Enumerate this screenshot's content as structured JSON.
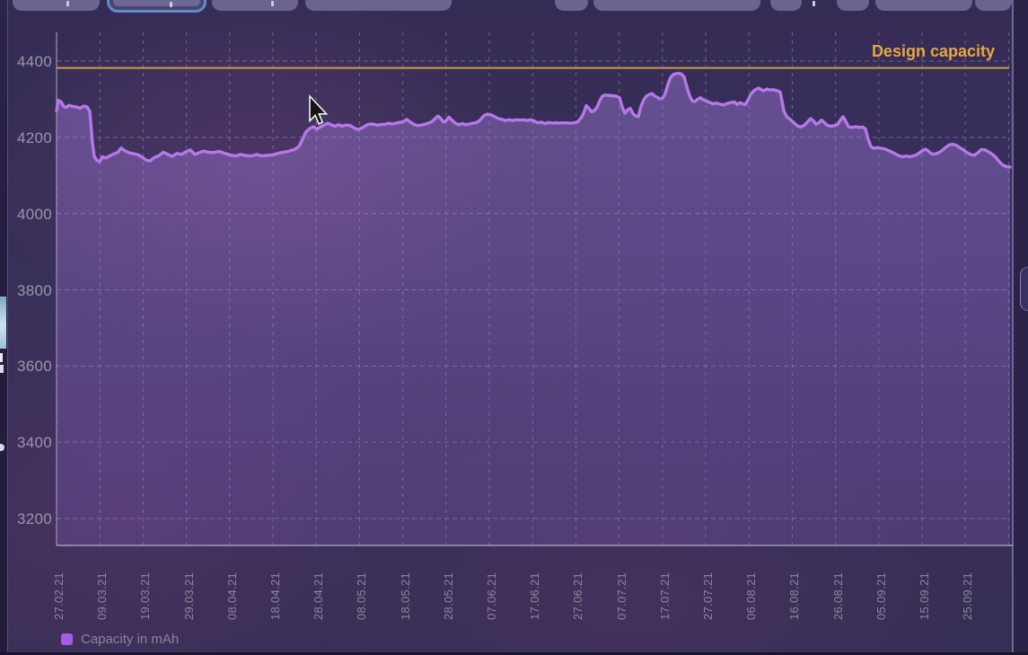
{
  "chart_data": {
    "type": "area",
    "title": "",
    "xlabel": "",
    "ylabel": "",
    "grid": true,
    "legend_position": "bottom-left",
    "y_ticks": [
      4400,
      4200,
      4000,
      3800,
      3600,
      3400,
      3200
    ],
    "ylim": [
      3150,
      4480
    ],
    "x_tick_labels": [
      "27.02.21",
      "09.03.21",
      "19.03.21",
      "29.03.21",
      "08.04.21",
      "18.04.21",
      "28.04.21",
      "08.05.21",
      "18.05.21",
      "28.05.21",
      "07.06.21",
      "17.06.21",
      "27.06.21",
      "07.07.21",
      "17.07.21",
      "27.07.21",
      "06.08.21",
      "16.08.21",
      "26.08.21",
      "05.09.21",
      "15.09.21",
      "25.09.21"
    ],
    "design_capacity": {
      "label": "Design capacity",
      "value": 4382,
      "color": "#cf9a42",
      "label_color": "#e7a83e"
    },
    "legend": {
      "label": "Capacity in mAh",
      "swatch_color": "#a55ce8"
    },
    "series": [
      {
        "name": "Capacity in mAh",
        "color": "#b678e8",
        "fill_top": "rgba(178,136,240,0.38)",
        "fill_bottom": "rgba(140,100,200,0.24)",
        "points": [
          [
            63,
            4270
          ],
          [
            65,
            4297
          ],
          [
            68,
            4293
          ],
          [
            71,
            4281
          ],
          [
            74,
            4279
          ],
          [
            77,
            4284
          ],
          [
            81,
            4281
          ],
          [
            85,
            4280
          ],
          [
            89,
            4276
          ],
          [
            93,
            4282
          ],
          [
            97,
            4280
          ],
          [
            100,
            4268
          ],
          [
            103,
            4185
          ],
          [
            105,
            4150
          ],
          [
            108,
            4139
          ],
          [
            111,
            4136
          ],
          [
            114,
            4149
          ],
          [
            118,
            4146
          ],
          [
            122,
            4151
          ],
          [
            127,
            4157
          ],
          [
            131,
            4160
          ],
          [
            135,
            4172
          ],
          [
            139,
            4165
          ],
          [
            144,
            4159
          ],
          [
            149,
            4157
          ],
          [
            154,
            4154
          ],
          [
            159,
            4147
          ],
          [
            163,
            4140
          ],
          [
            167,
            4138
          ],
          [
            172,
            4147
          ],
          [
            177,
            4152
          ],
          [
            182,
            4161
          ],
          [
            187,
            4155
          ],
          [
            192,
            4150
          ],
          [
            197,
            4158
          ],
          [
            202,
            4155
          ],
          [
            207,
            4162
          ],
          [
            212,
            4167
          ],
          [
            217,
            4155
          ],
          [
            222,
            4160
          ],
          [
            227,
            4164
          ],
          [
            232,
            4161
          ],
          [
            238,
            4160
          ],
          [
            244,
            4163
          ],
          [
            250,
            4158
          ],
          [
            256,
            4154
          ],
          [
            262,
            4151
          ],
          [
            268,
            4155
          ],
          [
            274,
            4152
          ],
          [
            280,
            4151
          ],
          [
            286,
            4155
          ],
          [
            292,
            4151
          ],
          [
            298,
            4153
          ],
          [
            304,
            4154
          ],
          [
            310,
            4158
          ],
          [
            316,
            4161
          ],
          [
            322,
            4164
          ],
          [
            328,
            4168
          ],
          [
            333,
            4176
          ],
          [
            337,
            4195
          ],
          [
            341,
            4215
          ],
          [
            345,
            4223
          ],
          [
            349,
            4228
          ],
          [
            353,
            4221
          ],
          [
            357,
            4228
          ],
          [
            361,
            4232
          ],
          [
            365,
            4237
          ],
          [
            369,
            4233
          ],
          [
            373,
            4229
          ],
          [
            377,
            4233
          ],
          [
            381,
            4229
          ],
          [
            385,
            4232
          ],
          [
            389,
            4232
          ],
          [
            393,
            4227
          ],
          [
            397,
            4221
          ],
          [
            401,
            4222
          ],
          [
            405,
            4227
          ],
          [
            409,
            4233
          ],
          [
            413,
            4235
          ],
          [
            417,
            4234
          ],
          [
            421,
            4232
          ],
          [
            425,
            4234
          ],
          [
            429,
            4234
          ],
          [
            433,
            4237
          ],
          [
            437,
            4235
          ],
          [
            441,
            4237
          ],
          [
            445,
            4239
          ],
          [
            449,
            4241
          ],
          [
            453,
            4247
          ],
          [
            457,
            4240
          ],
          [
            461,
            4234
          ],
          [
            465,
            4231
          ],
          [
            469,
            4232
          ],
          [
            473,
            4234
          ],
          [
            477,
            4237
          ],
          [
            481,
            4241
          ],
          [
            485,
            4250
          ],
          [
            488,
            4256
          ],
          [
            491,
            4249
          ],
          [
            494,
            4240
          ],
          [
            497,
            4244
          ],
          [
            500,
            4253
          ],
          [
            503,
            4246
          ],
          [
            507,
            4237
          ],
          [
            511,
            4233
          ],
          [
            515,
            4236
          ],
          [
            519,
            4233
          ],
          [
            523,
            4235
          ],
          [
            527,
            4237
          ],
          [
            531,
            4239
          ],
          [
            535,
            4246
          ],
          [
            539,
            4257
          ],
          [
            543,
            4261
          ],
          [
            547,
            4259
          ],
          [
            551,
            4254
          ],
          [
            555,
            4249
          ],
          [
            559,
            4247
          ],
          [
            563,
            4244
          ],
          [
            567,
            4246
          ],
          [
            571,
            4244
          ],
          [
            575,
            4246
          ],
          [
            579,
            4245
          ],
          [
            583,
            4246
          ],
          [
            587,
            4244
          ],
          [
            591,
            4246
          ],
          [
            595,
            4243
          ],
          [
            599,
            4238
          ],
          [
            603,
            4240
          ],
          [
            607,
            4236
          ],
          [
            611,
            4239
          ],
          [
            615,
            4237
          ],
          [
            619,
            4238
          ],
          [
            623,
            4237
          ],
          [
            627,
            4238
          ],
          [
            631,
            4238
          ],
          [
            635,
            4237
          ],
          [
            639,
            4238
          ],
          [
            643,
            4240
          ],
          [
            647,
            4250
          ],
          [
            650,
            4263
          ],
          [
            653,
            4283
          ],
          [
            656,
            4276
          ],
          [
            659,
            4267
          ],
          [
            662,
            4270
          ],
          [
            665,
            4279
          ],
          [
            668,
            4296
          ],
          [
            671,
            4308
          ],
          [
            674,
            4311
          ],
          [
            678,
            4310
          ],
          [
            682,
            4309
          ],
          [
            686,
            4308
          ],
          [
            690,
            4304
          ],
          [
            693,
            4280
          ],
          [
            696,
            4263
          ],
          [
            699,
            4272
          ],
          [
            702,
            4276
          ],
          [
            705,
            4262
          ],
          [
            708,
            4256
          ],
          [
            711,
            4254
          ],
          [
            714,
            4282
          ],
          [
            717,
            4298
          ],
          [
            720,
            4308
          ],
          [
            723,
            4312
          ],
          [
            726,
            4315
          ],
          [
            729,
            4309
          ],
          [
            732,
            4305
          ],
          [
            735,
            4301
          ],
          [
            738,
            4303
          ],
          [
            741,
            4315
          ],
          [
            744,
            4340
          ],
          [
            747,
            4357
          ],
          [
            750,
            4365
          ],
          [
            753,
            4367
          ],
          [
            756,
            4368
          ],
          [
            759,
            4366
          ],
          [
            762,
            4359
          ],
          [
            765,
            4332
          ],
          [
            768,
            4310
          ],
          [
            771,
            4295
          ],
          [
            774,
            4294
          ],
          [
            777,
            4300
          ],
          [
            780,
            4304
          ],
          [
            783,
            4299
          ],
          [
            786,
            4296
          ],
          [
            790,
            4292
          ],
          [
            794,
            4288
          ],
          [
            798,
            4290
          ],
          [
            802,
            4287
          ],
          [
            806,
            4285
          ],
          [
            810,
            4289
          ],
          [
            814,
            4291
          ],
          [
            818,
            4293
          ],
          [
            821,
            4286
          ],
          [
            824,
            4291
          ],
          [
            827,
            4288
          ],
          [
            830,
            4286
          ],
          [
            833,
            4297
          ],
          [
            836,
            4312
          ],
          [
            839,
            4321
          ],
          [
            842,
            4326
          ],
          [
            845,
            4329
          ],
          [
            848,
            4325
          ],
          [
            851,
            4322
          ],
          [
            854,
            4327
          ],
          [
            857,
            4324
          ],
          [
            860,
            4325
          ],
          [
            863,
            4324
          ],
          [
            866,
            4322
          ],
          [
            869,
            4319
          ],
          [
            871,
            4295
          ],
          [
            873,
            4270
          ],
          [
            876,
            4255
          ],
          [
            880,
            4247
          ],
          [
            884,
            4239
          ],
          [
            888,
            4230
          ],
          [
            892,
            4227
          ],
          [
            896,
            4232
          ],
          [
            900,
            4242
          ],
          [
            903,
            4249
          ],
          [
            906,
            4243
          ],
          [
            909,
            4234
          ],
          [
            912,
            4238
          ],
          [
            915,
            4245
          ],
          [
            918,
            4239
          ],
          [
            921,
            4232
          ],
          [
            925,
            4229
          ],
          [
            929,
            4230
          ],
          [
            933,
            4234
          ],
          [
            936,
            4245
          ],
          [
            939,
            4254
          ],
          [
            942,
            4242
          ],
          [
            945,
            4228
          ],
          [
            949,
            4226
          ],
          [
            953,
            4228
          ],
          [
            957,
            4226
          ],
          [
            961,
            4227
          ],
          [
            964,
            4222
          ],
          [
            967,
            4195
          ],
          [
            970,
            4176
          ],
          [
            973,
            4171
          ],
          [
            977,
            4173
          ],
          [
            981,
            4171
          ],
          [
            985,
            4170
          ],
          [
            989,
            4166
          ],
          [
            993,
            4162
          ],
          [
            997,
            4157
          ],
          [
            1001,
            4152
          ],
          [
            1005,
            4149
          ],
          [
            1009,
            4151
          ],
          [
            1013,
            4149
          ],
          [
            1017,
            4151
          ],
          [
            1021,
            4154
          ],
          [
            1025,
            4161
          ],
          [
            1028,
            4166
          ],
          [
            1031,
            4169
          ],
          [
            1034,
            4164
          ],
          [
            1037,
            4157
          ],
          [
            1041,
            4156
          ],
          [
            1045,
            4159
          ],
          [
            1049,
            4165
          ],
          [
            1053,
            4173
          ],
          [
            1057,
            4180
          ],
          [
            1061,
            4182
          ],
          [
            1065,
            4179
          ],
          [
            1069,
            4173
          ],
          [
            1073,
            4167
          ],
          [
            1077,
            4160
          ],
          [
            1081,
            4155
          ],
          [
            1085,
            4153
          ],
          [
            1089,
            4159
          ],
          [
            1093,
            4168
          ],
          [
            1097,
            4167
          ],
          [
            1101,
            4162
          ],
          [
            1105,
            4156
          ],
          [
            1109,
            4148
          ],
          [
            1113,
            4136
          ],
          [
            1117,
            4127
          ],
          [
            1121,
            4123
          ],
          [
            1125,
            4122
          ]
        ]
      }
    ]
  }
}
